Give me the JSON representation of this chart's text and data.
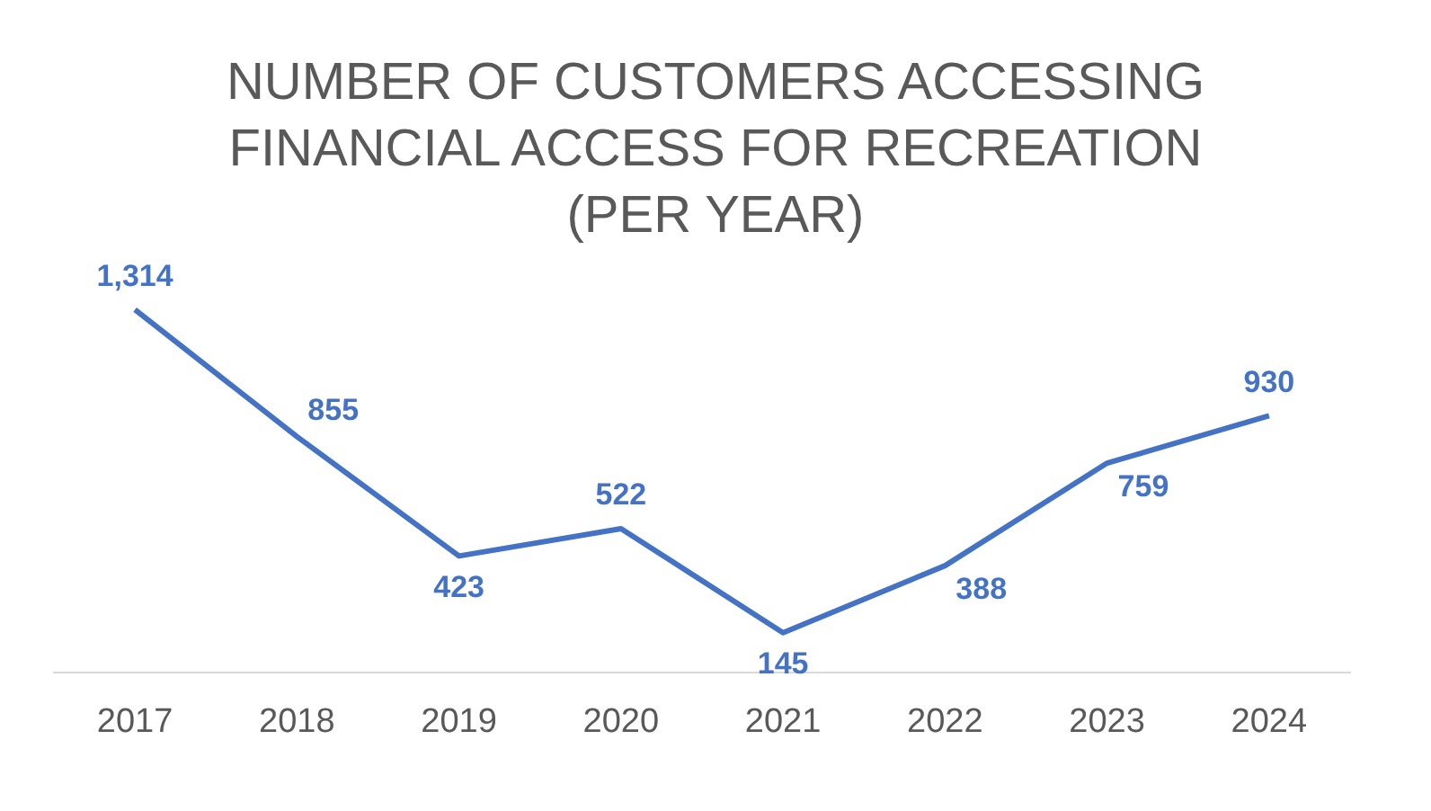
{
  "chart_data": {
    "type": "line",
    "title": "NUMBER OF CUSTOMERS ACCESSING FINANCIAL ACCESS FOR RECREATION (PER YEAR)",
    "categories": [
      "2017",
      "2018",
      "2019",
      "2020",
      "2021",
      "2022",
      "2023",
      "2024"
    ],
    "series": [
      {
        "color": "#4472c4",
        "values": [
          1314,
          855,
          423,
          522,
          145,
          388,
          759,
          930
        ],
        "value_labels": [
          "1,314",
          "855",
          "423",
          "522",
          "145",
          "388",
          "759",
          "930"
        ]
      }
    ],
    "grid": false,
    "legend": false,
    "line_style": "solid"
  }
}
